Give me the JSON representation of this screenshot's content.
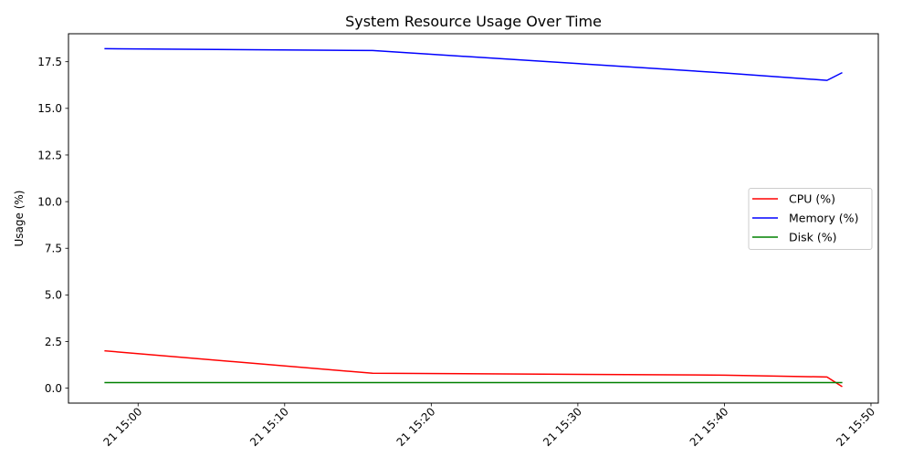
{
  "chart_data": {
    "type": "line",
    "title": "System Resource Usage Over Time",
    "xlabel": "",
    "ylabel": "Usage (%)",
    "x": [
      "2024-05-21 14:57:45",
      "2024-05-21 15:16:00",
      "2024-05-21 15:40:00",
      "2024-05-21 15:47:00",
      "2024-05-21 15:48:00"
    ],
    "x_ticks": [
      "2024-05-21 15:00",
      "2024-05-21 15:10",
      "2024-05-21 15:20",
      "2024-05-21 15:30",
      "2024-05-21 15:40",
      "2024-05-21 15:50"
    ],
    "x_tick_labels": [
      "21 15:00",
      "21 15:10",
      "21 15:20",
      "21 15:30",
      "21 15:40",
      "21 15:50"
    ],
    "xlim": [
      "2024-05-21 14:55:15",
      "2024-05-21 15:50:30"
    ],
    "y_ticks": [
      0.0,
      2.5,
      5.0,
      7.5,
      10.0,
      12.5,
      15.0,
      17.5
    ],
    "y_tick_labels": [
      "0.0",
      "2.5",
      "5.0",
      "7.5",
      "10.0",
      "12.5",
      "15.0",
      "17.5"
    ],
    "ylim": [
      -0.8,
      19.0
    ],
    "grid": false,
    "legend_position": "center-right",
    "series": [
      {
        "name": "CPU (%)",
        "color": "#ff0000",
        "values": [
          2.0,
          0.8,
          0.7,
          0.6,
          0.1
        ]
      },
      {
        "name": "Memory (%)",
        "color": "#0000ff",
        "values": [
          18.2,
          18.1,
          16.9,
          16.5,
          16.9
        ]
      },
      {
        "name": "Disk (%)",
        "color": "#008000",
        "values": [
          0.3,
          0.3,
          0.3,
          0.3,
          0.3
        ]
      }
    ]
  }
}
